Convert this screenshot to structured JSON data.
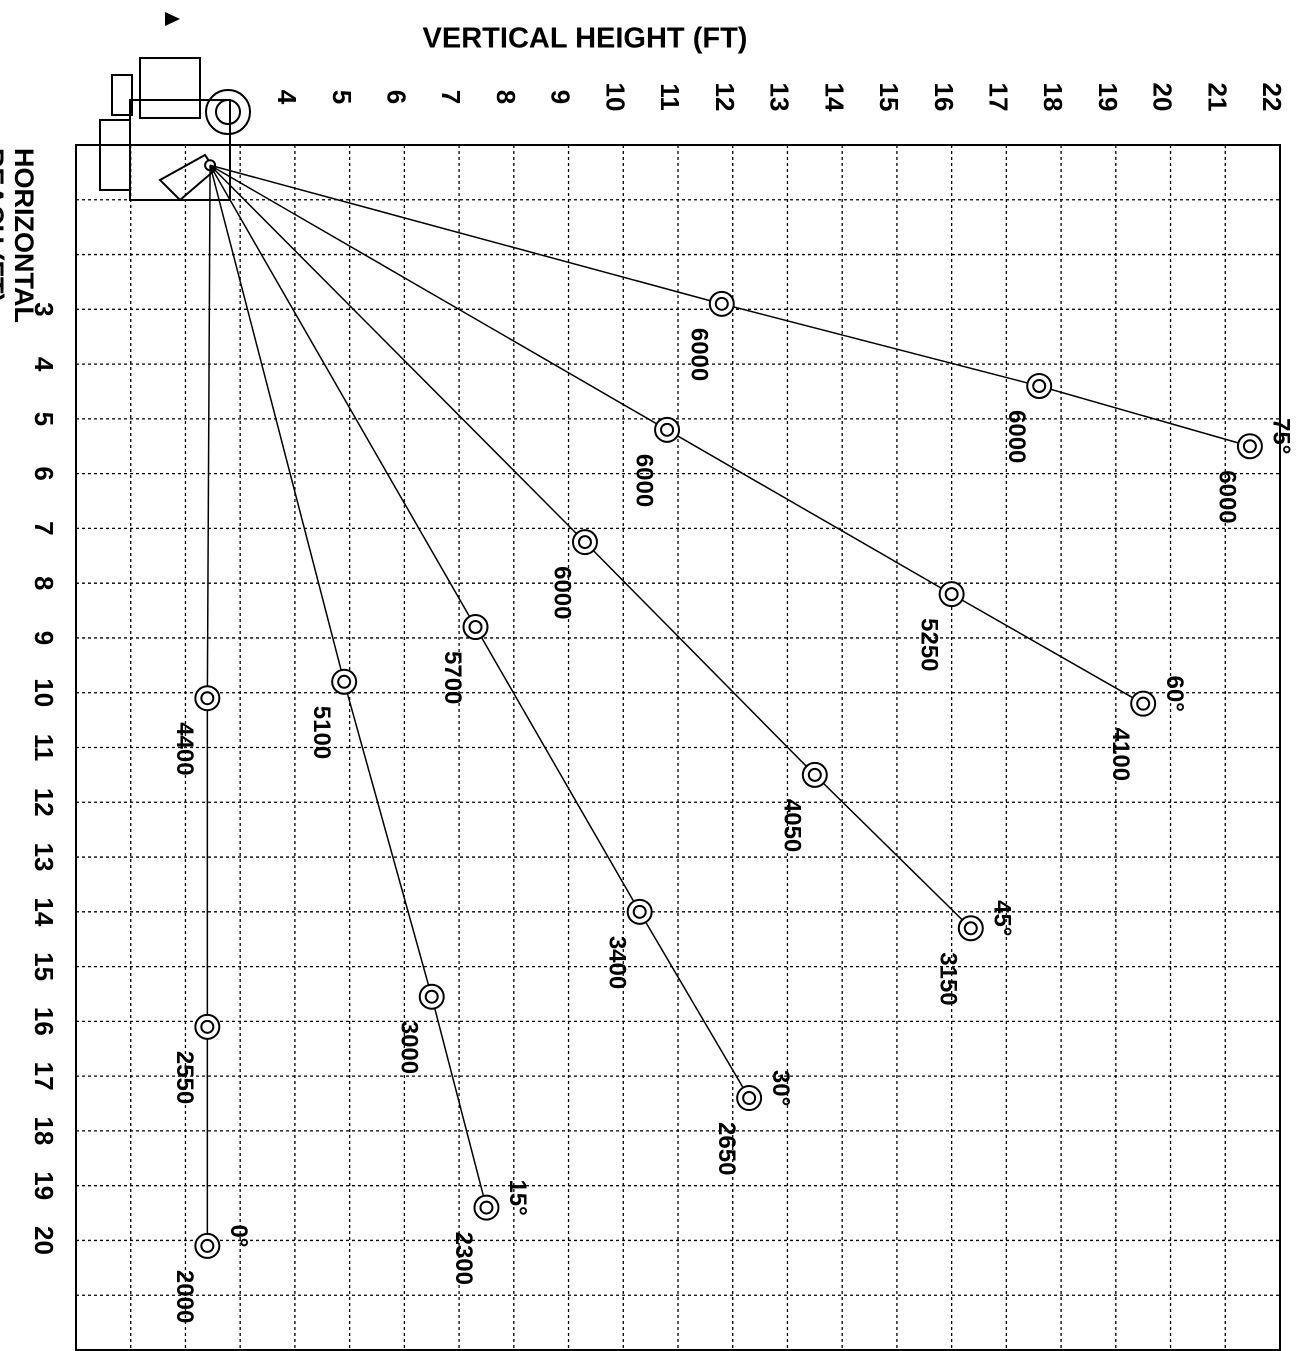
{
  "chart_data": {
    "type": "line",
    "title": "VERTICAL HEIGHT (FT)",
    "ylabel": [
      "HORIZONTAL",
      "REACH (FT)"
    ],
    "xlim": [
      0,
      22
    ],
    "ylim": [
      0,
      22
    ],
    "xticks": [
      4,
      5,
      6,
      7,
      8,
      9,
      10,
      11,
      12,
      13,
      14,
      15,
      16,
      17,
      18,
      19,
      20,
      21,
      22
    ],
    "yticks": [
      3,
      4,
      5,
      6,
      7,
      8,
      9,
      10,
      11,
      12,
      13,
      14,
      15,
      16,
      17,
      18,
      19,
      20
    ],
    "grid": true,
    "boom_pivot": {
      "x": 2.45,
      "y": 0.37
    },
    "color": "#000000",
    "series": [
      {
        "name": "75°",
        "x": [
          11.8,
          17.6,
          21.45
        ],
        "y": [
          2.9,
          4.4,
          5.5
        ],
        "values": [
          6000,
          6000,
          6000
        ]
      },
      {
        "name": "60°",
        "x": [
          10.8,
          16.0,
          19.5
        ],
        "y": [
          5.2,
          8.2,
          10.2
        ],
        "values": [
          6000,
          5250,
          4100
        ]
      },
      {
        "name": "45°",
        "x": [
          9.3,
          13.5,
          16.35
        ],
        "y": [
          7.25,
          11.5,
          14.3
        ],
        "values": [
          6000,
          4050,
          3150
        ]
      },
      {
        "name": "30°",
        "x": [
          7.3,
          10.3,
          12.3
        ],
        "y": [
          8.8,
          14.0,
          17.4
        ],
        "values": [
          5700,
          3400,
          2650
        ]
      },
      {
        "name": "15°",
        "x": [
          4.9,
          6.5,
          7.5
        ],
        "y": [
          9.8,
          15.55,
          19.4
        ],
        "values": [
          5100,
          3000,
          2300
        ]
      },
      {
        "name": "0°",
        "x": [
          2.4,
          2.4,
          2.4
        ],
        "y": [
          10.1,
          16.1,
          20.1
        ],
        "values": [
          4400,
          2550,
          2000
        ]
      }
    ]
  }
}
